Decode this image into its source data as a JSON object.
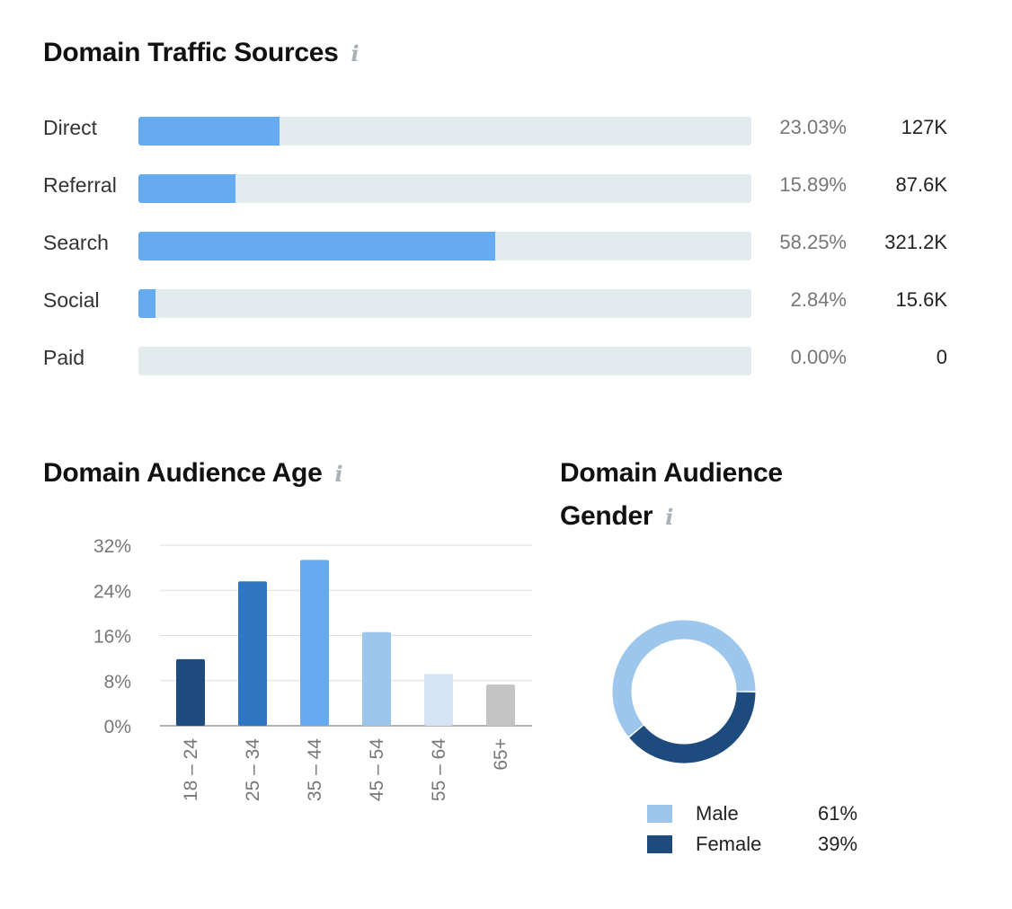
{
  "traffic": {
    "title": "Domain Traffic Sources",
    "info_icon": "i",
    "rows": [
      {
        "label": "Direct",
        "share": 23.03,
        "pct": "23.03%",
        "value": "127K"
      },
      {
        "label": "Referral",
        "share": 15.89,
        "pct": "15.89%",
        "value": "87.6K"
      },
      {
        "label": "Search",
        "share": 58.25,
        "pct": "58.25%",
        "value": "321.2K"
      },
      {
        "label": "Social",
        "share": 2.84,
        "pct": "2.84%",
        "value": "15.6K"
      },
      {
        "label": "Paid",
        "share": 0.0,
        "pct": "0.00%",
        "value": "0"
      }
    ]
  },
  "age": {
    "title": "Domain Audience Age",
    "info_icon": "i"
  },
  "gender": {
    "title_line1": "Domain Audience",
    "title_line2": "Gender",
    "info_icon": "i"
  },
  "colors": {
    "bar_fill": "#66aaf0",
    "track": "#e4ebef"
  },
  "chart_data": [
    {
      "type": "bar",
      "title": "Domain Traffic Sources",
      "categories": [
        "Direct",
        "Referral",
        "Search",
        "Social",
        "Paid"
      ],
      "values": [
        23.03,
        15.89,
        58.25,
        2.84,
        0.0
      ],
      "visits": [
        "127K",
        "87.6K",
        "321.2K",
        "15.6K",
        "0"
      ],
      "orientation": "horizontal"
    },
    {
      "type": "bar",
      "title": "Domain Audience Age",
      "categories": [
        "18 – 24",
        "25 – 34",
        "35 – 44",
        "45 – 54",
        "55 – 64",
        "65+"
      ],
      "values": [
        11.8,
        25.6,
        29.4,
        16.6,
        9.2,
        7.3
      ],
      "colors": [
        "#1e4b7d",
        "#2f77c0",
        "#66aaf0",
        "#9dc6ec",
        "#d3e5f4",
        "#c4c4c4"
      ],
      "yticks": [
        "0%",
        "8%",
        "16%",
        "24%",
        "32%"
      ],
      "ylim": [
        0,
        32
      ],
      "grid": true
    },
    {
      "type": "pie",
      "title": "Domain Audience Gender",
      "donut": true,
      "labels": [
        "Male",
        "Female"
      ],
      "values": [
        61,
        39
      ],
      "display": [
        "61%",
        "39%"
      ],
      "colors": [
        "#9dc6ec",
        "#1e4b7d"
      ],
      "legend": "bottom"
    }
  ]
}
